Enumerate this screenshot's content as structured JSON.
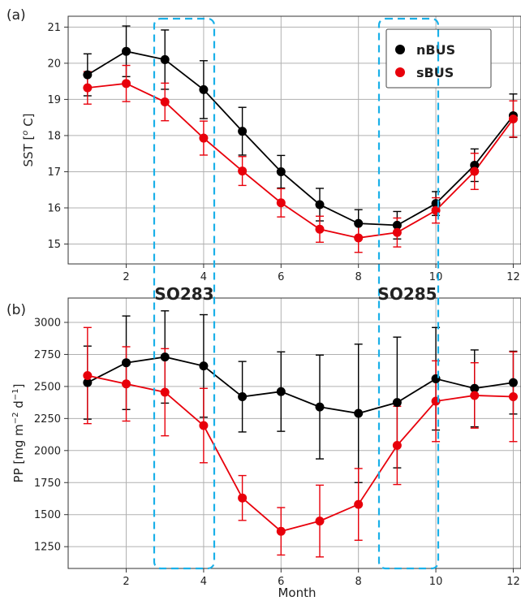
{
  "panel_labels": {
    "a": "(a)",
    "b": "(b)"
  },
  "cruise_labels": [
    "SO283",
    "SO285"
  ],
  "colors": {
    "nBUS": "#000000",
    "sBUS": "#e8000b",
    "dashed_box": "#1ab0e8",
    "grid": "#b0b0b0"
  },
  "chart_data": [
    {
      "type": "line",
      "panel": "(a)",
      "ylabel": "SST [° C]",
      "ylabel_prefix": "SST [",
      "ylabel_sup": "o",
      "ylabel_suffix": " C]",
      "xlabel": "",
      "xlim": [
        0.5,
        12.2
      ],
      "ylim": [
        14.45,
        21.3
      ],
      "xticks": [
        2,
        4,
        6,
        8,
        10,
        12
      ],
      "yticks": [
        15,
        16,
        17,
        18,
        19,
        20,
        21
      ],
      "x": [
        1,
        2,
        3,
        4,
        5,
        6,
        7,
        8,
        9,
        10,
        11,
        12
      ],
      "grid": true,
      "legend": {
        "position": "top-right",
        "entries": [
          "nBUS",
          "sBUS"
        ]
      },
      "series": [
        {
          "name": "nBUS",
          "color": "#000000",
          "values": [
            19.68,
            20.33,
            20.1,
            19.27,
            18.12,
            17.0,
            16.09,
            15.57,
            15.52,
            16.12,
            17.18,
            18.55
          ],
          "error": [
            0.58,
            0.7,
            0.82,
            0.8,
            0.66,
            0.45,
            0.45,
            0.38,
            0.38,
            0.33,
            0.45,
            0.6
          ]
        },
        {
          "name": "sBUS",
          "color": "#e8000b",
          "values": [
            19.32,
            19.44,
            18.93,
            17.93,
            17.02,
            16.14,
            15.41,
            15.17,
            15.32,
            15.93,
            17.01,
            18.46
          ],
          "error": [
            0.45,
            0.5,
            0.52,
            0.47,
            0.4,
            0.39,
            0.36,
            0.4,
            0.4,
            0.35,
            0.5,
            0.5
          ]
        }
      ]
    },
    {
      "type": "line",
      "panel": "(b)",
      "ylabel": "PP [mg m⁻² d⁻¹]",
      "xlabel": "Month",
      "xlim": [
        0.5,
        12.2
      ],
      "ylim": [
        1080,
        3190
      ],
      "xticks": [
        2,
        4,
        6,
        8,
        10,
        12
      ],
      "yticks": [
        1250,
        1500,
        1750,
        2000,
        2250,
        2500,
        2750,
        3000
      ],
      "x": [
        1,
        2,
        3,
        4,
        5,
        6,
        7,
        8,
        9,
        10,
        11,
        12
      ],
      "grid": true,
      "series": [
        {
          "name": "nBUS",
          "color": "#000000",
          "values": [
            2530,
            2685,
            2730,
            2660,
            2420,
            2460,
            2340,
            2290,
            2375,
            2560,
            2485,
            2530
          ],
          "error": [
            285,
            365,
            360,
            400,
            275,
            310,
            405,
            540,
            510,
            400,
            300,
            245
          ]
        },
        {
          "name": "sBUS",
          "color": "#e8000b",
          "values": [
            2585,
            2520,
            2455,
            2195,
            1630,
            1370,
            1450,
            1580,
            2040,
            2385,
            2430,
            2420
          ],
          "error": [
            375,
            290,
            340,
            290,
            175,
            185,
            280,
            280,
            305,
            315,
            255,
            350
          ]
        }
      ]
    }
  ]
}
